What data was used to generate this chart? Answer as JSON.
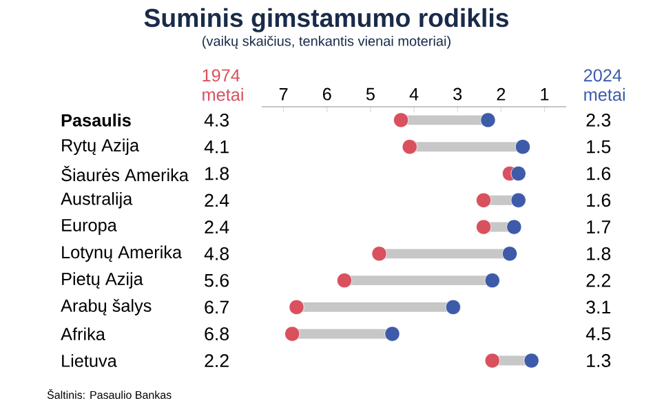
{
  "chart_data": {
    "type": "scatter",
    "title": "Suminis gimstamumo rodiklis",
    "subtitle": "(vaikų skaičius, tenkantis vienai moteriai)",
    "orientation": "horizontal",
    "categories": [
      "**Pasaulis**",
      "Rytų Azija",
      "Šiaurės Amerika",
      "Australija",
      "Europa",
      "Lotynų Amerika",
      "Pietų Azija",
      "Arabų šalys",
      "Afrika",
      "Lietuva"
    ],
    "series": [
      {
        "name": "1974 metai",
        "color": "#d9515e",
        "values": [
          4.3,
          4.1,
          1.8,
          2.4,
          2.4,
          4.8,
          5.6,
          6.7,
          6.8,
          2.2
        ]
      },
      {
        "name": "2024 metai",
        "color": "#3d5ba9",
        "values": [
          2.3,
          1.5,
          1.6,
          1.6,
          1.7,
          1.8,
          2.2,
          3.1,
          4.5,
          1.3
        ]
      }
    ],
    "xlim": [
      7.5,
      0.5
    ],
    "xticks": [
      7,
      6,
      5,
      4,
      3,
      2,
      1
    ],
    "data_labels": true,
    "grid": false,
    "legend": false,
    "annotations": [
      "Šaltinis: Pasaulio Bankas"
    ]
  }
}
